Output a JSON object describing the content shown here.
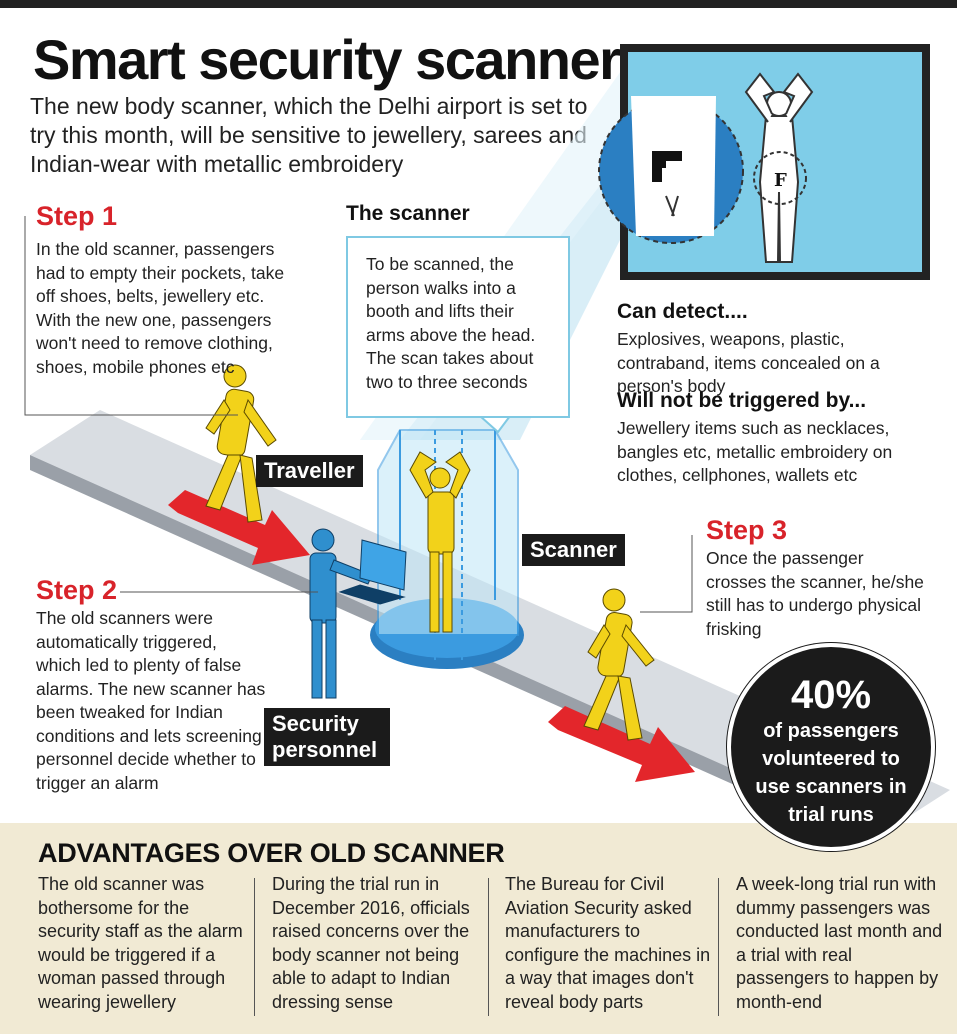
{
  "header": {
    "title": "Smart security scanners",
    "subtitle": "The new body scanner, which the Delhi airport is set to try this month, will be sensitive to jewellery, sarees and Indian-wear with metallic embroidery"
  },
  "step1": {
    "title": "Step 1",
    "text": "In the old scanner, passengers had to empty their pockets, take off shoes, belts, jewellery etc. With the new one, passengers won't need to remove clothing, shoes, mobile phones etc"
  },
  "scanner_info": {
    "title": "The scanner",
    "text": "To be scanned, the person walks into a booth and lifts their arms above the head. The scan takes about two to three seconds"
  },
  "detect": {
    "title": "Can detect....",
    "text": "Explosives, weapons, plastic, contraband, items concealed on a person's body"
  },
  "not_triggered": {
    "title": "Will not be triggered by...",
    "text": "Jewellery items such as necklaces, bangles etc, metallic embroidery on clothes, cellphones, wallets etc"
  },
  "step2": {
    "title": "Step 2",
    "text": "The old scanners were automatically triggered, which led to plenty of false alarms. The new scanner has been tweaked for Indian conditions and lets screening personnel decide whether to trigger an alarm"
  },
  "step3": {
    "title": "Step 3",
    "text": "Once the passenger crosses the scanner, he/she still has to undergo physical frisking"
  },
  "labels": {
    "traveller": "Traveller",
    "scanner": "Scanner",
    "security_personnel": "Security personnel"
  },
  "stat": {
    "value": "40%",
    "label": "of passengers volunteered to use scanners in trial runs"
  },
  "advantages": {
    "title": "ADVANTAGES OVER OLD SCANNER",
    "columns": [
      "The old scanner was bothersome for the security staff as the alarm would be triggered if a woman passed through wearing jewellery",
      "During the trial run in December 2016, officials raised concerns over the body scanner not being able to adapt to Indian dressing sense",
      "The Bureau for Civil Aviation Security asked manufacturers to configure the machines in a way that images don't reveal body parts",
      "A week-long trial run with dummy passengers was conducted last month and a trial with real passengers to happen by month-end"
    ]
  },
  "colors": {
    "accent_red": "#d8232a",
    "figure_yellow": "#f2d21a",
    "personnel_blue": "#2f8fce",
    "screen_blue": "#7fcde8",
    "panel_beige": "#f1ead4"
  },
  "icons": [
    "gun-icon",
    "traveller-figure",
    "security-personnel-figure",
    "scanner-booth",
    "direction-arrow"
  ]
}
